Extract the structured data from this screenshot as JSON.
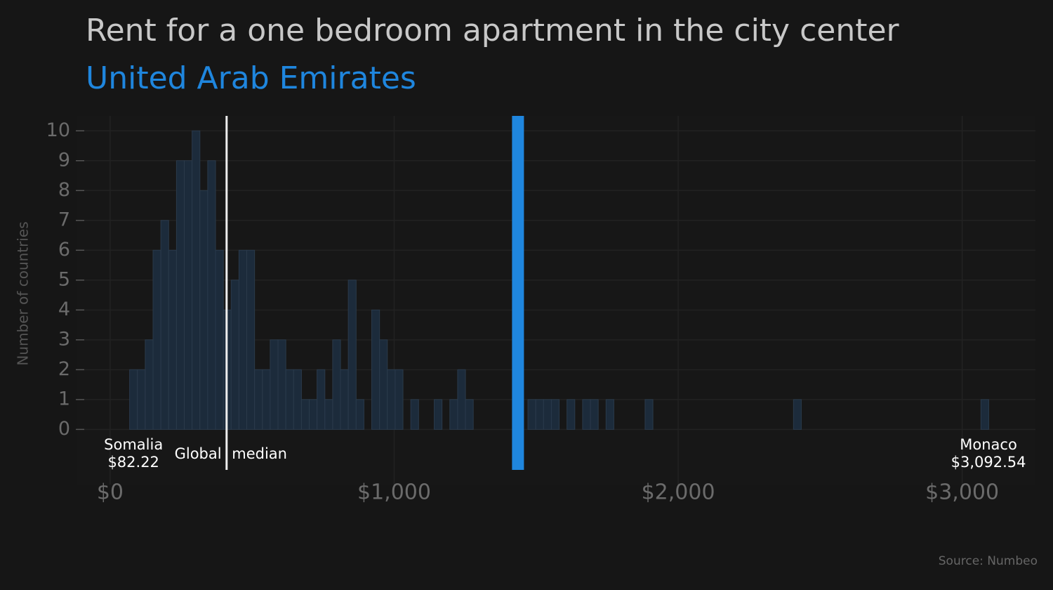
{
  "chart_data": {
    "type": "histogram",
    "title": "Rent for a one bedroom apartment in the city center",
    "subtitle": "United Arab Emirates",
    "y_label": "Number of countries",
    "source": "Source: Numbeo",
    "bins": [
      68.5,
      96,
      123.5,
      151,
      178.5,
      206,
      233.5,
      261,
      288.5,
      316,
      343.5,
      371,
      398.5,
      426,
      453.5,
      481,
      508.5,
      536,
      563.5,
      591,
      618.5,
      646,
      673.5,
      701,
      728.5,
      756,
      783.5,
      811,
      838.5,
      866,
      893.5,
      921,
      948.5,
      976,
      1003.5,
      1031,
      1058.5,
      1086,
      1113.5,
      1141,
      1168.5,
      1196,
      1223.5,
      1251,
      1278.5,
      1306,
      1333.5,
      1361,
      1388.5,
      1416,
      1443.5,
      1471,
      1498.5,
      1526,
      1553.5,
      1581,
      1608.5,
      1636,
      1663.5,
      1691,
      1718.5,
      1746,
      1773.5,
      1801,
      1828.5,
      1856,
      1883.5,
      1911,
      1938.5,
      1966,
      1993.5,
      2021,
      2048.5,
      2076,
      2103.5,
      2131,
      2158.5,
      2186,
      2213.5,
      2241,
      2268.5,
      2296,
      2323.5,
      2351,
      2378.5,
      2406,
      2433.5,
      2461,
      2488.5,
      2516,
      2543.5,
      2571,
      2598.5,
      2626,
      2653.5,
      2681,
      2708.5,
      2736,
      2763.5,
      2791,
      2818.5,
      2846,
      2873.5,
      2901,
      2928.5,
      2956,
      2983.5,
      3011,
      3038.5,
      3066,
      3093.5
    ],
    "values": [
      2,
      2,
      3,
      6,
      7,
      6,
      9,
      9,
      10,
      8,
      9,
      6,
      4,
      5,
      6,
      6,
      2,
      2,
      3,
      3,
      2,
      2,
      1,
      1,
      2,
      1,
      3,
      2,
      5,
      1,
      0,
      4,
      3,
      2,
      2,
      0,
      1,
      0,
      0,
      1,
      0,
      1,
      2,
      1,
      0,
      0,
      0,
      0,
      0,
      0,
      0,
      1,
      1,
      1,
      1,
      0,
      1,
      0,
      1,
      1,
      0,
      1,
      0,
      0,
      0,
      0,
      1,
      0,
      0,
      0,
      0,
      0,
      0,
      0,
      0,
      0,
      0,
      0,
      0,
      0,
      0,
      0,
      0,
      0,
      0,
      1,
      0,
      0,
      0,
      0,
      0,
      0,
      0,
      0,
      0,
      0,
      0,
      0,
      0,
      0,
      0,
      0,
      0,
      0,
      0,
      0,
      0,
      0,
      0,
      1
    ],
    "color": "#1c2b3b",
    "xlim": [
      -116,
      3258
    ],
    "ylim": [
      -1.85,
      10.5
    ],
    "xticks": [
      {
        "value": 0,
        "label": "$0"
      },
      {
        "value": 1000,
        "label": "$1,000"
      },
      {
        "value": 2000,
        "label": "$2,000"
      },
      {
        "value": 3000,
        "label": "$3,000"
      }
    ],
    "yticks": [
      0,
      1,
      2,
      3,
      4,
      5,
      6,
      7,
      8,
      9,
      10
    ],
    "grid": true,
    "highlight": {
      "x": 1436,
      "color": "#1f86de"
    },
    "median": {
      "label": "Global median",
      "x": 410
    },
    "annotations": [
      {
        "label": "Somalia",
        "value_label": "$82.22",
        "x": 82.22
      },
      {
        "label": "Monaco",
        "value_label": "$3,092.54",
        "x": 3092.54
      }
    ]
  }
}
